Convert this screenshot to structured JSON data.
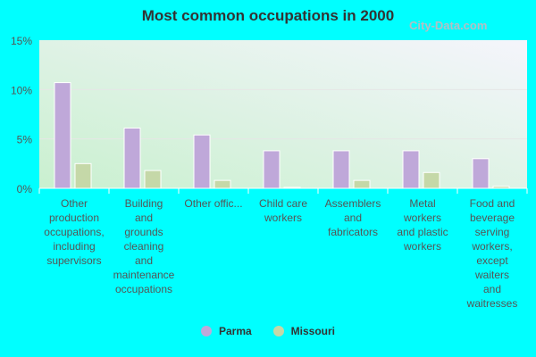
{
  "chart_data": {
    "type": "bar",
    "title": "Most common occupations in 2000",
    "categories": [
      "Other production occupations, including supervisors",
      "Building and grounds cleaning and maintenance occupations",
      "Other offic...",
      "Child care workers",
      "Assemblers and fabricators",
      "Metal workers and plastic workers",
      "Food and beverage serving workers, except waiters and waitresses"
    ],
    "category_lines": [
      [
        "Other",
        "production",
        "occupations,",
        "including",
        "supervisors"
      ],
      [
        "Building",
        "and",
        "grounds",
        "cleaning",
        "and",
        "maintenance",
        "occupations"
      ],
      [
        "Other offic..."
      ],
      [
        "Child care",
        "workers"
      ],
      [
        "Assemblers",
        "and",
        "fabricators"
      ],
      [
        "Metal",
        "workers",
        "and plastic",
        "workers"
      ],
      [
        "Food and",
        "beverage",
        "serving",
        "workers,",
        "except",
        "waiters",
        "and",
        "waitresses"
      ]
    ],
    "series": [
      {
        "name": "Parma",
        "color": "#bfa8d9",
        "values": [
          10.7,
          6.1,
          5.4,
          3.8,
          3.8,
          3.8,
          3.0
        ]
      },
      {
        "name": "Missouri",
        "color": "#c5d8a8",
        "values": [
          2.5,
          1.8,
          0.8,
          0.1,
          0.8,
          1.6,
          0.2
        ]
      }
    ],
    "ylim": [
      0,
      15
    ],
    "yticks": [
      0,
      5,
      10,
      15
    ],
    "ytick_labels": [
      "0%",
      "5%",
      "10%",
      "15%"
    ],
    "legend": "bottom"
  },
  "watermark": "City-Data.com"
}
